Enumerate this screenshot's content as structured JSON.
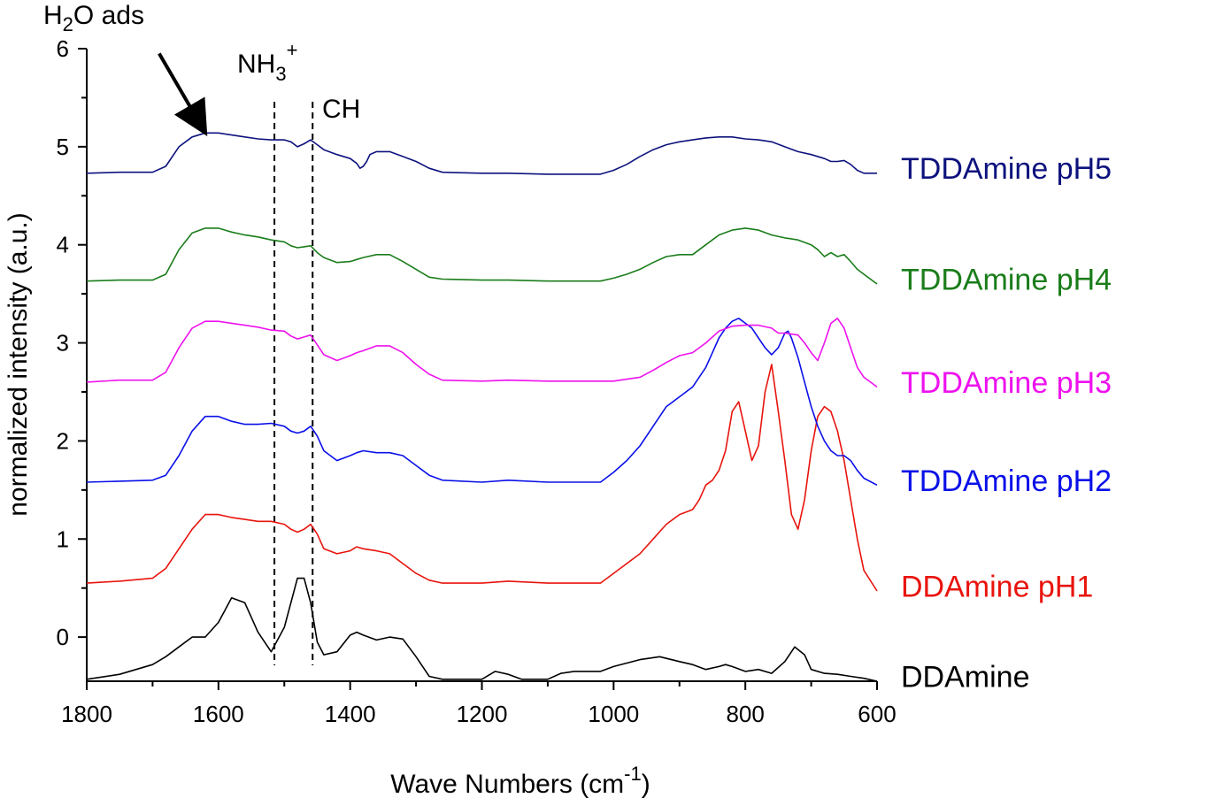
{
  "chart_data": {
    "type": "line",
    "title": "",
    "xlabel": "Wave Numbers (cm",
    "xlabel_sup": "-1",
    "xlabel_end": ")",
    "ylabel": "normalized intensity (a.u.)",
    "xlim": [
      1800,
      600
    ],
    "ylim": [
      -0.45,
      6
    ],
    "x_reversed": true,
    "x_ticks": [
      1800,
      1600,
      1400,
      1200,
      1000,
      800,
      600
    ],
    "y_ticks": [
      0,
      1,
      2,
      3,
      4,
      5,
      6
    ],
    "grid": false,
    "legend": "labels at right end of each trace",
    "annotations": {
      "h2o": {
        "main": "H",
        "sub": "2",
        "rest": "O ads",
        "arrow_from": [
          1690,
          5.95
        ],
        "arrow_to": [
          1625,
          5.2
        ]
      },
      "nh3": {
        "main": "NH",
        "sub": "3",
        "sup": "+",
        "line_x": 1515
      },
      "ch": {
        "text": "CH",
        "line_x": 1457
      }
    },
    "series": [
      {
        "name": "DDAmine",
        "color": "#000000",
        "x": [
          1800,
          1750,
          1700,
          1680,
          1660,
          1640,
          1620,
          1600,
          1580,
          1560,
          1540,
          1520,
          1500,
          1490,
          1480,
          1470,
          1460,
          1450,
          1440,
          1420,
          1400,
          1390,
          1380,
          1360,
          1340,
          1320,
          1300,
          1280,
          1260,
          1200,
          1180,
          1160,
          1140,
          1100,
          1080,
          1060,
          1020,
          1000,
          960,
          930,
          900,
          880,
          860,
          840,
          830,
          820,
          800,
          780,
          760,
          740,
          725,
          710,
          700,
          680,
          660,
          640,
          620,
          600
        ],
        "y": [
          -0.43,
          -0.38,
          -0.28,
          -0.2,
          -0.1,
          0.0,
          0.0,
          0.15,
          0.4,
          0.35,
          0.05,
          -0.15,
          0.1,
          0.35,
          0.6,
          0.6,
          0.35,
          -0.05,
          -0.18,
          -0.15,
          0.02,
          0.05,
          0.02,
          -0.03,
          0.0,
          -0.02,
          -0.2,
          -0.4,
          -0.43,
          -0.43,
          -0.35,
          -0.38,
          -0.43,
          -0.43,
          -0.37,
          -0.35,
          -0.35,
          -0.3,
          -0.23,
          -0.2,
          -0.25,
          -0.28,
          -0.33,
          -0.3,
          -0.28,
          -0.3,
          -0.35,
          -0.33,
          -0.37,
          -0.25,
          -0.1,
          -0.18,
          -0.33,
          -0.37,
          -0.38,
          -0.4,
          -0.42,
          -0.45
        ]
      },
      {
        "name": "DDAmine pH1",
        "color": "#e8140d",
        "x": [
          1800,
          1750,
          1700,
          1680,
          1660,
          1640,
          1620,
          1600,
          1580,
          1560,
          1540,
          1520,
          1500,
          1490,
          1480,
          1470,
          1460,
          1450,
          1440,
          1420,
          1400,
          1390,
          1380,
          1360,
          1340,
          1320,
          1300,
          1280,
          1260,
          1200,
          1160,
          1100,
          1020,
          1000,
          980,
          960,
          940,
          920,
          900,
          880,
          870,
          860,
          850,
          840,
          830,
          820,
          810,
          800,
          790,
          780,
          770,
          760,
          750,
          740,
          730,
          720,
          710,
          700,
          690,
          680,
          670,
          660,
          650,
          640,
          630,
          620,
          600
        ],
        "y": [
          0.55,
          0.57,
          0.6,
          0.7,
          0.9,
          1.1,
          1.25,
          1.25,
          1.22,
          1.2,
          1.18,
          1.18,
          1.15,
          1.1,
          1.07,
          1.1,
          1.15,
          1.05,
          0.9,
          0.85,
          0.88,
          0.92,
          0.9,
          0.88,
          0.85,
          0.75,
          0.65,
          0.58,
          0.55,
          0.55,
          0.57,
          0.55,
          0.55,
          0.65,
          0.75,
          0.85,
          1.0,
          1.15,
          1.25,
          1.3,
          1.4,
          1.55,
          1.6,
          1.7,
          1.9,
          2.3,
          2.4,
          2.1,
          1.8,
          1.95,
          2.5,
          2.78,
          2.3,
          1.8,
          1.25,
          1.1,
          1.4,
          1.9,
          2.25,
          2.35,
          2.3,
          2.1,
          1.8,
          1.4,
          1.0,
          0.68,
          0.47
        ]
      },
      {
        "name": "TDDAmine pH2",
        "color": "#0a10e8",
        "x": [
          1800,
          1750,
          1700,
          1680,
          1660,
          1640,
          1620,
          1600,
          1580,
          1560,
          1540,
          1520,
          1500,
          1490,
          1480,
          1470,
          1460,
          1450,
          1440,
          1420,
          1400,
          1390,
          1380,
          1360,
          1340,
          1320,
          1300,
          1280,
          1260,
          1200,
          1160,
          1100,
          1020,
          1000,
          980,
          960,
          940,
          920,
          900,
          880,
          860,
          850,
          840,
          830,
          820,
          810,
          800,
          790,
          780,
          770,
          760,
          750,
          740,
          735,
          730,
          720,
          710,
          700,
          690,
          680,
          670,
          660,
          650,
          640,
          630,
          620,
          600
        ],
        "y": [
          1.58,
          1.59,
          1.6,
          1.65,
          1.85,
          2.1,
          2.25,
          2.25,
          2.2,
          2.17,
          2.17,
          2.18,
          2.15,
          2.1,
          2.08,
          2.1,
          2.15,
          2.05,
          1.9,
          1.8,
          1.85,
          1.88,
          1.9,
          1.88,
          1.88,
          1.85,
          1.75,
          1.65,
          1.6,
          1.58,
          1.6,
          1.58,
          1.58,
          1.68,
          1.8,
          1.95,
          2.15,
          2.35,
          2.45,
          2.55,
          2.75,
          2.9,
          3.05,
          3.15,
          3.22,
          3.25,
          3.2,
          3.15,
          3.05,
          2.95,
          2.88,
          2.95,
          3.1,
          3.12,
          3.05,
          2.85,
          2.6,
          2.35,
          2.15,
          2.0,
          1.9,
          1.85,
          1.85,
          1.8,
          1.7,
          1.62,
          1.55
        ]
      },
      {
        "name": "TDDAmine pH3",
        "color": "#ee11ee",
        "x": [
          1800,
          1750,
          1700,
          1680,
          1660,
          1640,
          1620,
          1600,
          1580,
          1560,
          1540,
          1520,
          1500,
          1490,
          1480,
          1470,
          1460,
          1450,
          1440,
          1420,
          1400,
          1390,
          1380,
          1360,
          1340,
          1320,
          1300,
          1280,
          1260,
          1200,
          1160,
          1100,
          1020,
          1000,
          980,
          960,
          940,
          920,
          900,
          880,
          860,
          840,
          820,
          800,
          780,
          760,
          750,
          740,
          720,
          710,
          700,
          690,
          680,
          670,
          660,
          650,
          640,
          630,
          620,
          600
        ],
        "y": [
          2.6,
          2.62,
          2.62,
          2.7,
          2.95,
          3.15,
          3.22,
          3.22,
          3.2,
          3.18,
          3.16,
          3.13,
          3.12,
          3.07,
          3.04,
          3.06,
          3.08,
          2.98,
          2.88,
          2.82,
          2.87,
          2.9,
          2.92,
          2.97,
          2.97,
          2.9,
          2.78,
          2.68,
          2.62,
          2.61,
          2.62,
          2.61,
          2.61,
          2.61,
          2.63,
          2.65,
          2.72,
          2.8,
          2.87,
          2.9,
          3.0,
          3.12,
          3.17,
          3.18,
          3.18,
          3.15,
          3.1,
          3.1,
          3.08,
          3.0,
          2.9,
          2.82,
          3.0,
          3.2,
          3.25,
          3.15,
          2.95,
          2.75,
          2.65,
          2.55
        ]
      },
      {
        "name": "TDDAmine pH4",
        "color": "#1a7d1a",
        "x": [
          1800,
          1750,
          1700,
          1680,
          1660,
          1640,
          1620,
          1600,
          1580,
          1560,
          1540,
          1520,
          1500,
          1490,
          1480,
          1470,
          1460,
          1450,
          1440,
          1420,
          1400,
          1390,
          1380,
          1360,
          1340,
          1320,
          1300,
          1280,
          1260,
          1200,
          1160,
          1100,
          1020,
          1000,
          980,
          960,
          940,
          920,
          900,
          880,
          860,
          840,
          820,
          800,
          780,
          760,
          740,
          720,
          700,
          690,
          680,
          670,
          660,
          650,
          640,
          630,
          620,
          600
        ],
        "y": [
          3.63,
          3.64,
          3.64,
          3.7,
          3.95,
          4.12,
          4.17,
          4.17,
          4.13,
          4.1,
          4.08,
          4.05,
          4.03,
          3.99,
          3.97,
          3.98,
          3.99,
          3.92,
          3.87,
          3.82,
          3.83,
          3.85,
          3.87,
          3.9,
          3.9,
          3.83,
          3.75,
          3.67,
          3.65,
          3.64,
          3.64,
          3.63,
          3.63,
          3.66,
          3.7,
          3.75,
          3.82,
          3.88,
          3.9,
          3.9,
          4.0,
          4.1,
          4.15,
          4.17,
          4.15,
          4.1,
          4.07,
          4.05,
          4.0,
          3.95,
          3.88,
          3.92,
          3.88,
          3.9,
          3.83,
          3.75,
          3.7,
          3.6
        ]
      },
      {
        "name": "TDDAmine pH5",
        "color": "#0d127d",
        "x": [
          1800,
          1750,
          1700,
          1680,
          1660,
          1640,
          1620,
          1600,
          1580,
          1560,
          1540,
          1520,
          1500,
          1490,
          1480,
          1470,
          1460,
          1450,
          1440,
          1420,
          1400,
          1390,
          1385,
          1380,
          1375,
          1370,
          1360,
          1340,
          1320,
          1300,
          1280,
          1260,
          1200,
          1160,
          1100,
          1020,
          1000,
          980,
          960,
          940,
          920,
          900,
          880,
          860,
          840,
          820,
          800,
          780,
          760,
          740,
          720,
          700,
          680,
          670,
          660,
          650,
          640,
          630,
          620,
          600
        ],
        "y": [
          4.73,
          4.74,
          4.74,
          4.8,
          5.0,
          5.1,
          5.14,
          5.14,
          5.12,
          5.1,
          5.08,
          5.07,
          5.07,
          5.05,
          5.0,
          5.03,
          5.07,
          5.02,
          4.97,
          4.92,
          4.88,
          4.83,
          4.78,
          4.8,
          4.85,
          4.92,
          4.95,
          4.95,
          4.9,
          4.85,
          4.78,
          4.74,
          4.73,
          4.73,
          4.72,
          4.72,
          4.76,
          4.82,
          4.9,
          4.97,
          5.02,
          5.05,
          5.07,
          5.09,
          5.1,
          5.1,
          5.08,
          5.07,
          5.05,
          5.0,
          4.95,
          4.92,
          4.88,
          4.85,
          4.85,
          4.86,
          4.82,
          4.76,
          4.73,
          4.73
        ]
      }
    ]
  }
}
